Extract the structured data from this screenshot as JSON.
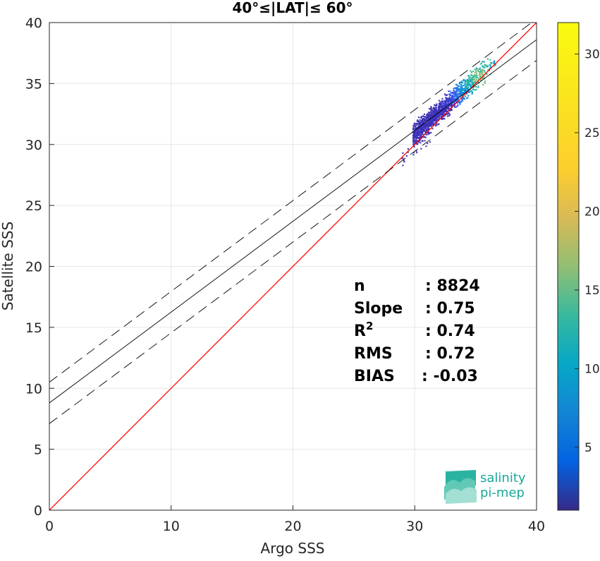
{
  "chart_data": {
    "type": "heatmap",
    "title": "40°≤|LAT|≤ 60°",
    "xlabel": "Argo SSS",
    "ylabel": "Satellite SSS",
    "xlim": [
      0,
      40
    ],
    "ylim": [
      0,
      40
    ],
    "xticks": [
      "0",
      "10",
      "20",
      "30",
      "40"
    ],
    "yticks": [
      "0",
      "5",
      "10",
      "15",
      "20",
      "25",
      "30",
      "35",
      "40"
    ],
    "grid": true,
    "reference_lines": [
      {
        "name": "one-to-one",
        "color": "#ff0000",
        "style": "solid",
        "x": [
          0,
          40
        ],
        "y": [
          0,
          40
        ]
      },
      {
        "name": "fit",
        "color": "#000000",
        "style": "solid",
        "x": [
          0,
          40
        ],
        "y": [
          8.8,
          38.6
        ]
      },
      {
        "name": "fit-upper",
        "color": "#000000",
        "style": "dashed",
        "x": [
          0,
          40
        ],
        "y": [
          10.5,
          40.3
        ]
      },
      {
        "name": "fit-lower",
        "color": "#000000",
        "style": "dashed",
        "x": [
          0,
          40
        ],
        "y": [
          7.1,
          36.9
        ]
      }
    ],
    "density_cloud": {
      "x_range": [
        28.8,
        36.8
      ],
      "y_range": [
        28.5,
        37.0
      ],
      "fit_slope": 0.75,
      "fit_intercept": 8.8,
      "core": [
        35.5,
        35.5
      ],
      "max_count": 32
    },
    "colorbar": {
      "range": [
        1,
        32
      ],
      "ticks": [
        "5",
        "10",
        "15",
        "20",
        "25",
        "30"
      ],
      "colormap": "parula"
    },
    "stats": [
      {
        "label": "n",
        "sup": "",
        "value": ": 8824"
      },
      {
        "label": "Slope",
        "sup": "",
        "value": ": 0.75"
      },
      {
        "label": "R",
        "sup": "2",
        "value": ": 0.74"
      },
      {
        "label": "RMS",
        "sup": "",
        "value": ": 0.72"
      },
      {
        "label": "BIAS",
        "sup": "",
        "value": ": -0.03"
      }
    ]
  },
  "logo": {
    "line1": "salinity",
    "line2": "pi-mep"
  },
  "colors": {
    "one_to_one": "#ff0000",
    "fit": "#000000",
    "logo": "#1aa89a",
    "grid": "#e6e6e6"
  }
}
